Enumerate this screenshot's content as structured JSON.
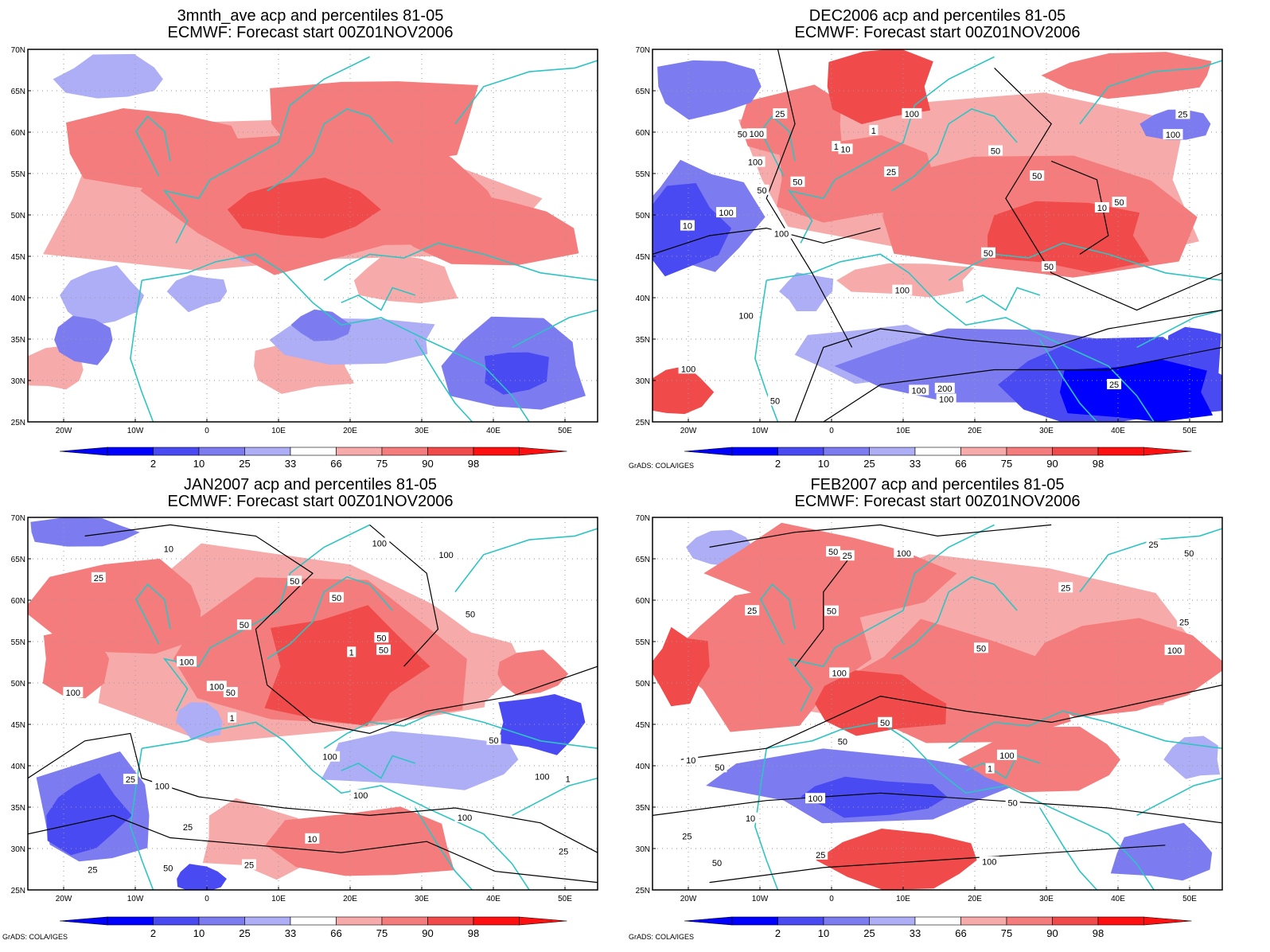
{
  "panels": [
    {
      "id": "p1",
      "title1": "3mnth_ave acp and percentiles 81-05",
      "title2": "ECMWF: Forecast start 00Z01NOV2006",
      "credit": "",
      "contour_labels": []
    },
    {
      "id": "p2",
      "title1": "DEC2006 acp and percentiles 81-05",
      "title2": "ECMWF: Forecast start 00Z01NOV2006",
      "credit": "GrADS: COLA/IGES",
      "contour_labels": [
        "100",
        "100",
        "100",
        "200",
        "50",
        "50",
        "50",
        "50",
        "100",
        "100",
        "100",
        "100",
        "100",
        "100",
        "100",
        "50",
        "25",
        "10",
        "50",
        "25",
        "10",
        "1",
        "1",
        "25",
        "10",
        "50",
        "100",
        "50",
        "25",
        "50"
      ]
    },
    {
      "id": "p3",
      "title1": "JAN2007 acp and percentiles 81-05",
      "title2": "ECMWF: Forecast start 00Z01NOV2006",
      "credit": "GrADS: COLA/IGES",
      "contour_labels": [
        "100",
        "100",
        "50",
        "50",
        "50",
        "100",
        "100",
        "25",
        "100",
        "50",
        "100",
        "50",
        "100",
        "100",
        "100",
        "25",
        "100",
        "50",
        "50",
        "25",
        "50",
        "10",
        "25",
        "10",
        "1",
        "1",
        "1",
        "25",
        "50",
        "25"
      ]
    },
    {
      "id": "p4",
      "title1": "FEB2007 acp and percentiles 81-05",
      "title2": "ECMWF: Forecast start 00Z01NOV2006",
      "credit": "GrADS: COLA/IGES",
      "contour_labels": [
        "50",
        "100",
        "100",
        "25",
        "100",
        "50",
        "50",
        "25",
        "100",
        "50",
        "50",
        "100",
        "50",
        "25",
        "25",
        "100",
        "50",
        "50",
        "25",
        "50",
        "25",
        "10",
        "1",
        "10",
        "25"
      ]
    }
  ],
  "axes": {
    "lat_ticks": [
      "70N",
      "65N",
      "60N",
      "55N",
      "50N",
      "45N",
      "40N",
      "35N",
      "30N",
      "25N"
    ],
    "lon_ticks": [
      "20W",
      "10W",
      "0",
      "10E",
      "20E",
      "30E",
      "40E",
      "50E"
    ],
    "lon_range": [
      -25,
      55
    ],
    "lat_range": [
      25,
      70
    ]
  },
  "colorbar": {
    "labels": [
      "2",
      "10",
      "25",
      "33",
      "66",
      "75",
      "90",
      "98"
    ],
    "colors_low": [
      "#0000ff",
      "#4a4af2",
      "#7c7cf0",
      "#aeaef6"
    ],
    "colors_high": [
      "#f7aaaa",
      "#f47c7c",
      "#f04a4a",
      "#ff1010"
    ]
  },
  "colors": {
    "coast": "#2ec4c4",
    "contour": "#000000",
    "grid": "#9a9a9a"
  }
}
